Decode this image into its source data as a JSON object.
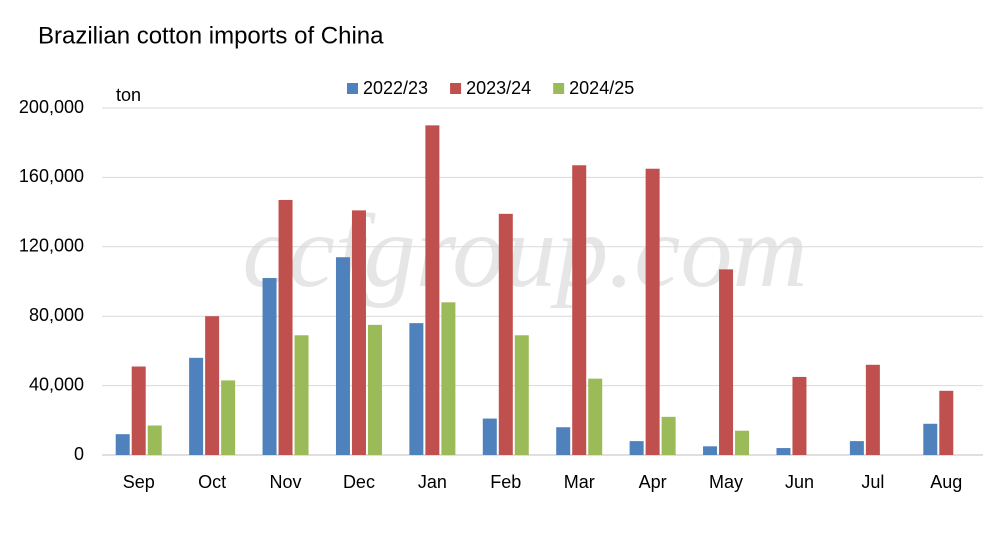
{
  "chart_data": {
    "type": "bar",
    "title": "Brazilian cotton imports of China",
    "y_label": "ton",
    "watermark": "ccfgroup.com",
    "categories": [
      "Sep",
      "Oct",
      "Nov",
      "Dec",
      "Jan",
      "Feb",
      "Mar",
      "Apr",
      "May",
      "Jun",
      "Jul",
      "Aug"
    ],
    "series": [
      {
        "name": "2022/23",
        "color": "#4f81bd",
        "values": [
          12000,
          56000,
          102000,
          114000,
          76000,
          21000,
          16000,
          8000,
          5000,
          4000,
          8000,
          18000
        ]
      },
      {
        "name": "2023/24",
        "color": "#c0504d",
        "values": [
          51000,
          80000,
          147000,
          141000,
          190000,
          139000,
          167000,
          165000,
          107000,
          45000,
          52000,
          37000
        ]
      },
      {
        "name": "2024/25",
        "color": "#9bbb59",
        "values": [
          17000,
          43000,
          69000,
          75000,
          88000,
          69000,
          44000,
          22000,
          14000,
          null,
          null,
          null
        ]
      }
    ],
    "ylim": [
      0,
      200000
    ],
    "yticks": [
      0,
      {
        "value": 40000,
        "label": "40,000"
      },
      {
        "value": 80000,
        "label": "80,000"
      },
      {
        "value": 120000,
        "label": "120,000"
      },
      {
        "value": 160000,
        "label": "160,000"
      },
      {
        "value": 200000,
        "label": "200,000"
      }
    ],
    "grid": true,
    "legend": "top"
  }
}
